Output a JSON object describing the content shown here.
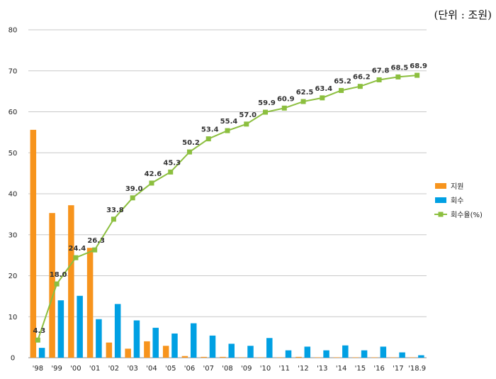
{
  "unit_label": "(단위 : 조원)",
  "chart_data": {
    "type": "bar",
    "categories": [
      "'98",
      "'99",
      "'00",
      "'01",
      "'02",
      "'03",
      "'04",
      "'05",
      "'06",
      "'07",
      "'08",
      "'09",
      "'10",
      "'11",
      "'12",
      "'13",
      "'14",
      "'15",
      "'16",
      "'17",
      "'18.9"
    ],
    "series": [
      {
        "name": "지원",
        "type": "bar",
        "color": "#f7941d",
        "values": [
          55.6,
          35.3,
          37.2,
          26.8,
          3.7,
          2.2,
          4.0,
          2.9,
          0.4,
          0.2,
          0.2,
          0.1,
          0.1,
          0.1,
          0.2,
          0.1,
          0.1,
          0.1,
          0.1,
          0.1,
          0.1
        ]
      },
      {
        "name": "회수",
        "type": "bar",
        "color": "#00a0e3",
        "values": [
          2.4,
          14.0,
          15.1,
          9.4,
          13.1,
          9.1,
          7.3,
          5.9,
          8.4,
          5.4,
          3.4,
          2.9,
          4.8,
          1.8,
          2.7,
          1.8,
          3.0,
          1.8,
          2.7,
          1.3,
          0.6
        ]
      },
      {
        "name": "회수율(%)",
        "type": "line",
        "color": "#8cbf3f",
        "values": [
          4.3,
          18.0,
          24.4,
          26.3,
          33.8,
          39.0,
          42.6,
          45.3,
          50.2,
          53.4,
          55.4,
          57.0,
          59.9,
          60.9,
          62.5,
          63.4,
          65.2,
          66.2,
          67.8,
          68.5,
          68.9
        ],
        "labels": [
          "4.3",
          "18.0",
          "24.4",
          "26.3",
          "33.8",
          "39.0",
          "42.6",
          "45.3",
          "50.2",
          "53.4",
          "55.4",
          "57.0",
          "59.9",
          "60.9",
          "62.5",
          "63.4",
          "65.2",
          "66.2",
          "67.8",
          "68.5",
          "68.9"
        ]
      }
    ],
    "ylim": [
      0,
      80
    ],
    "yticks": [
      "0",
      "10",
      "20",
      "30",
      "40",
      "50",
      "60",
      "70",
      "80"
    ],
    "grid": true,
    "legend_placement": "right"
  }
}
